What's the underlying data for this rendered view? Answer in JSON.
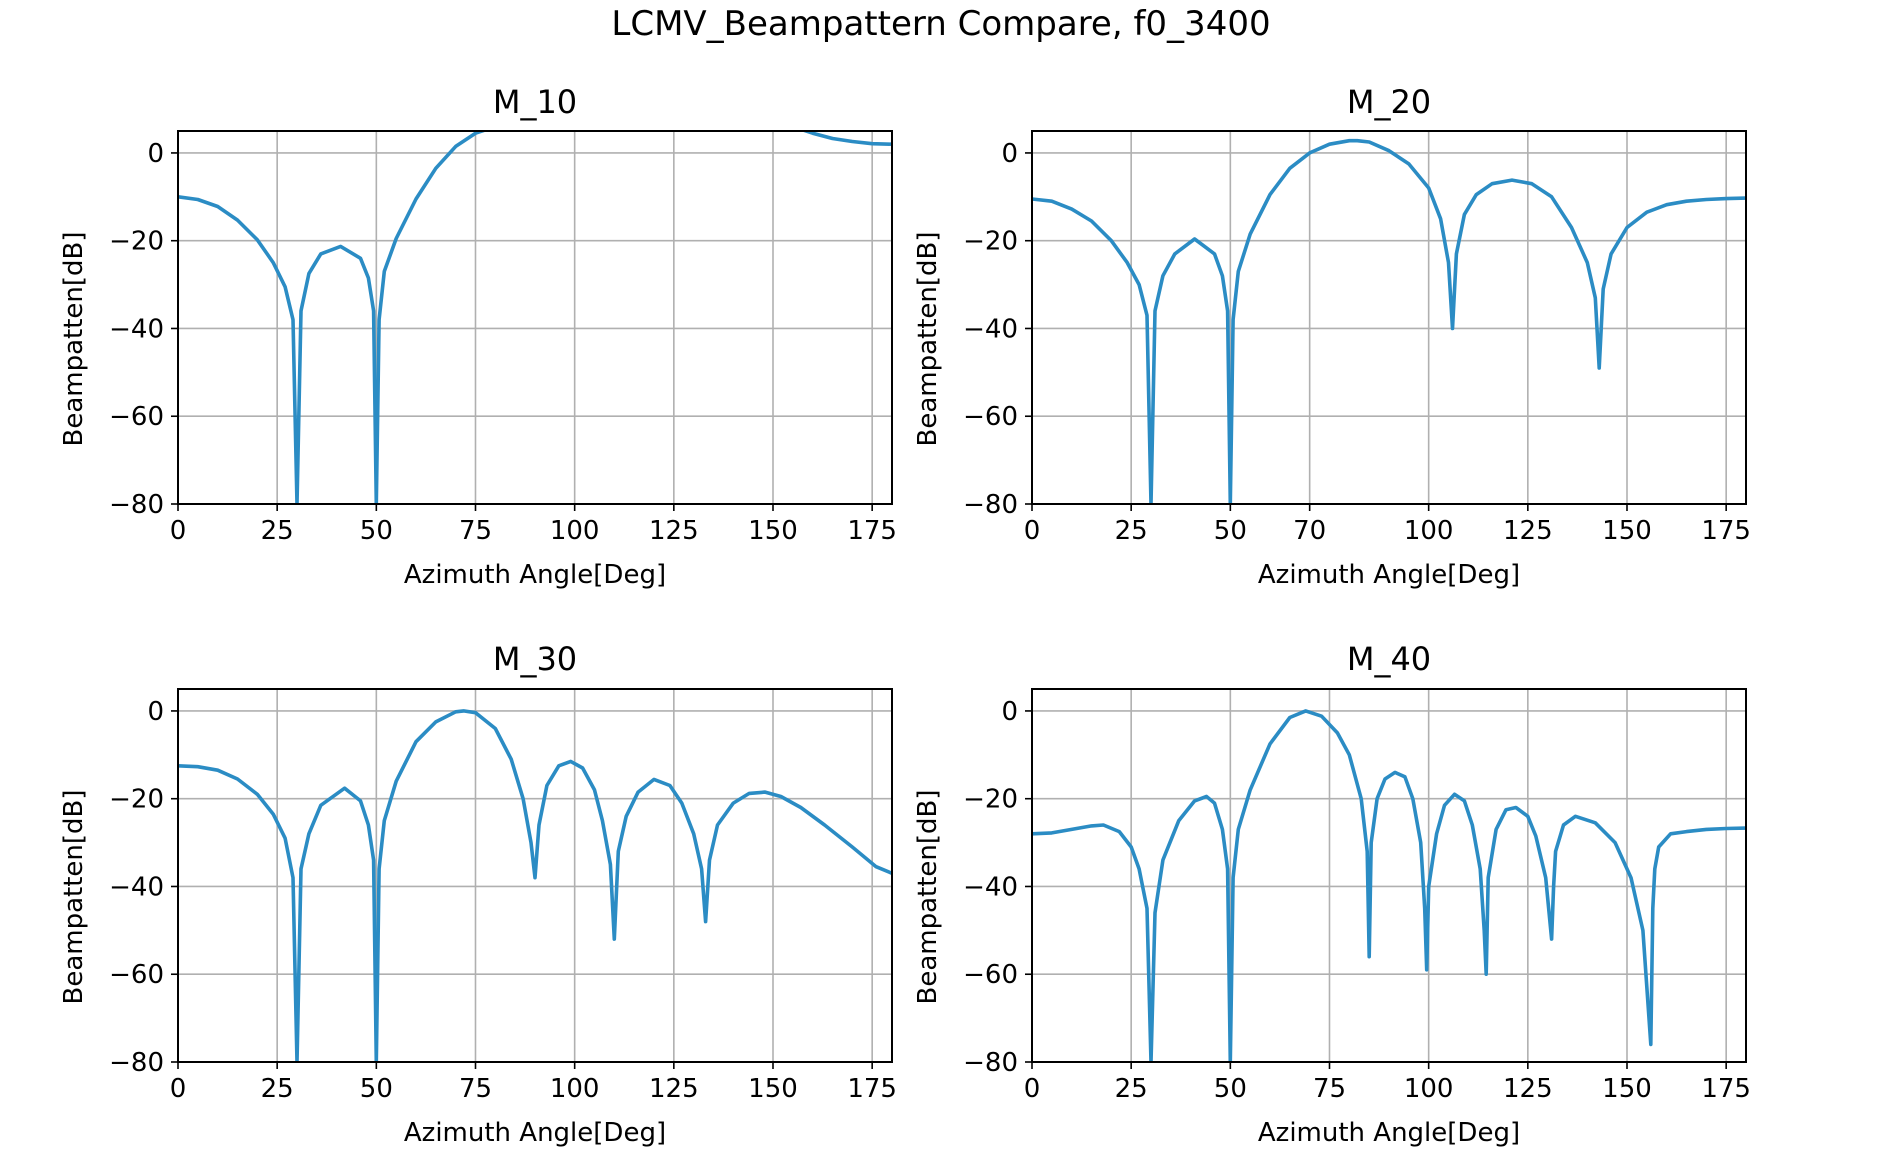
{
  "figure_title": "LCMV_Beampattern Compare, f0_3400",
  "colors": {
    "series": "#2b8cc4",
    "grid": "#b0b0b0"
  },
  "chart_data": [
    {
      "type": "line",
      "title": "M_10",
      "xlabel": "Azimuth Angle[Deg]",
      "ylabel": "Beampatten[dB]",
      "xlim": [
        0,
        180
      ],
      "ylim": [
        -80,
        5
      ],
      "xticks": [
        0,
        25,
        50,
        75,
        100,
        125,
        150,
        175
      ],
      "yticks": [
        0,
        -20,
        -40,
        -60,
        -80
      ],
      "grid": true,
      "series": [
        {
          "x": [
            0,
            5,
            10,
            15,
            20,
            24,
            27,
            29,
            30,
            31,
            33,
            36,
            41,
            46,
            48,
            49.3,
            50,
            50.7,
            52,
            55,
            60,
            65,
            70,
            75,
            80,
            155,
            160,
            165,
            170,
            175,
            180
          ],
          "y": [
            -10,
            -10.6,
            -12.2,
            -15.3,
            -19.8,
            -25,
            -30.5,
            -38,
            -80,
            -36,
            -27.5,
            -23,
            -21.3,
            -24,
            -28.5,
            -36,
            -80,
            -38,
            -27,
            -19.5,
            -10.5,
            -3.5,
            1.5,
            4.5,
            6,
            6,
            4.5,
            3.3,
            2.6,
            2.1,
            2
          ]
        }
      ]
    },
    {
      "type": "line",
      "title": "M_20",
      "xlabel": "Azimuth Angle[Deg]",
      "ylabel": "Beampatten[dB]",
      "xlim": [
        0,
        180
      ],
      "ylim": [
        -80,
        5
      ],
      "xticks": [
        0,
        25,
        50,
        70,
        100,
        125,
        150,
        175
      ],
      "yticks": [
        0,
        -20,
        -40,
        -60,
        -80
      ],
      "grid": true,
      "series": [
        {
          "x": [
            0,
            5,
            10,
            15,
            20,
            24,
            27,
            29,
            30,
            31,
            33,
            36,
            41,
            46,
            48,
            49.3,
            50,
            50.7,
            52,
            55,
            60,
            65,
            70,
            75,
            80,
            82,
            85,
            90,
            95,
            100,
            103,
            105,
            106,
            107,
            109,
            112,
            116,
            121,
            126,
            131,
            136,
            140,
            142,
            143,
            144,
            146,
            150,
            155,
            160,
            165,
            170,
            175,
            180
          ],
          "y": [
            -10.5,
            -11,
            -12.8,
            -15.5,
            -20,
            -25,
            -30,
            -37,
            -80,
            -36,
            -28,
            -23,
            -19.6,
            -23,
            -28,
            -36,
            -80,
            -38,
            -27,
            -18.5,
            -9.5,
            -3.5,
            0,
            2,
            2.8,
            2.8,
            2.5,
            0.5,
            -2.5,
            -8,
            -15,
            -25,
            -40,
            -23,
            -14,
            -9.5,
            -7,
            -6.2,
            -7,
            -10,
            -17,
            -25,
            -33,
            -49,
            -31,
            -23,
            -17,
            -13.5,
            -11.8,
            -11,
            -10.6,
            -10.4,
            -10.3
          ]
        }
      ]
    },
    {
      "type": "line",
      "title": "M_30",
      "xlabel": "Azimuth Angle[Deg]",
      "ylabel": "Beampatten[dB]",
      "xlim": [
        0,
        180
      ],
      "ylim": [
        -80,
        5
      ],
      "xticks": [
        0,
        25,
        50,
        75,
        100,
        125,
        150,
        175
      ],
      "yticks": [
        0,
        -20,
        -40,
        -60,
        -80
      ],
      "grid": true,
      "series": [
        {
          "x": [
            0,
            5,
            10,
            15,
            20,
            24,
            27,
            29,
            30,
            31,
            33,
            36,
            42,
            46,
            48,
            49.3,
            50,
            50.7,
            52,
            55,
            60,
            65,
            70,
            72,
            75,
            80,
            84,
            87,
            89,
            90,
            91,
            93,
            96,
            99,
            102,
            105,
            107,
            109,
            110,
            111,
            113,
            116,
            120,
            124,
            127,
            130,
            132,
            133,
            134,
            136,
            140,
            144,
            148,
            152,
            157,
            163,
            170,
            176,
            180
          ],
          "y": [
            -12.5,
            -12.7,
            -13.5,
            -15.5,
            -19,
            -23.5,
            -29,
            -38,
            -80,
            -36,
            -28,
            -21.5,
            -17.6,
            -20.5,
            -26,
            -34,
            -80,
            -36,
            -25,
            -16,
            -7,
            -2.5,
            -0.2,
            0,
            -0.4,
            -4,
            -11,
            -20,
            -30,
            -38,
            -26,
            -17,
            -12.5,
            -11.5,
            -13,
            -18,
            -25,
            -35,
            -52,
            -32,
            -24,
            -18.5,
            -15.6,
            -17,
            -21,
            -28,
            -36,
            -48,
            -34,
            -26,
            -21,
            -18.8,
            -18.5,
            -19.5,
            -22,
            -26,
            -31,
            -35.5,
            -37
          ]
        }
      ]
    },
    {
      "type": "line",
      "title": "M_40",
      "xlabel": "Azimuth Angle[Deg]",
      "ylabel": "Beampatten[dB]",
      "xlim": [
        0,
        180
      ],
      "ylim": [
        -80,
        5
      ],
      "xticks": [
        0,
        25,
        50,
        75,
        100,
        125,
        150,
        175
      ],
      "yticks": [
        0,
        -20,
        -40,
        -60,
        -80
      ],
      "grid": true,
      "series": [
        {
          "x": [
            0,
            5,
            10,
            15,
            18,
            22,
            25,
            27,
            29,
            30,
            31,
            33,
            37,
            41,
            44,
            46,
            48,
            49.3,
            50,
            50.7,
            52,
            55,
            60,
            65,
            69,
            73,
            77,
            80,
            83,
            84.5,
            85,
            85.5,
            87,
            89,
            91.5,
            94,
            96,
            98,
            99,
            99.5,
            100,
            102,
            104,
            106.5,
            109,
            111,
            113,
            114,
            114.5,
            115,
            117,
            119.5,
            122,
            125,
            127,
            129.5,
            131,
            131.5,
            132,
            134,
            137,
            142,
            147,
            151,
            154,
            156,
            156.5,
            157,
            158,
            161,
            165,
            170,
            175,
            180
          ],
          "y": [
            -28,
            -27.8,
            -27,
            -26.2,
            -26,
            -27.5,
            -31,
            -36,
            -45,
            -80,
            -46,
            -34,
            -25,
            -20.5,
            -19.5,
            -21,
            -27,
            -36,
            -80,
            -38,
            -27,
            -18,
            -7.5,
            -1.5,
            0,
            -1.2,
            -5,
            -10,
            -20,
            -32,
            -56,
            -30,
            -20,
            -15.5,
            -14,
            -15,
            -20,
            -30,
            -45,
            -59,
            -40,
            -28,
            -21.5,
            -19,
            -20.5,
            -26,
            -36,
            -50,
            -60,
            -38,
            -27,
            -22.5,
            -22,
            -24,
            -28.5,
            -38,
            -52,
            -40,
            -32,
            -26,
            -24,
            -25.5,
            -30,
            -38,
            -50,
            -76,
            -45,
            -36,
            -31,
            -28,
            -27.5,
            -27,
            -26.8,
            -26.7
          ]
        }
      ]
    }
  ]
}
